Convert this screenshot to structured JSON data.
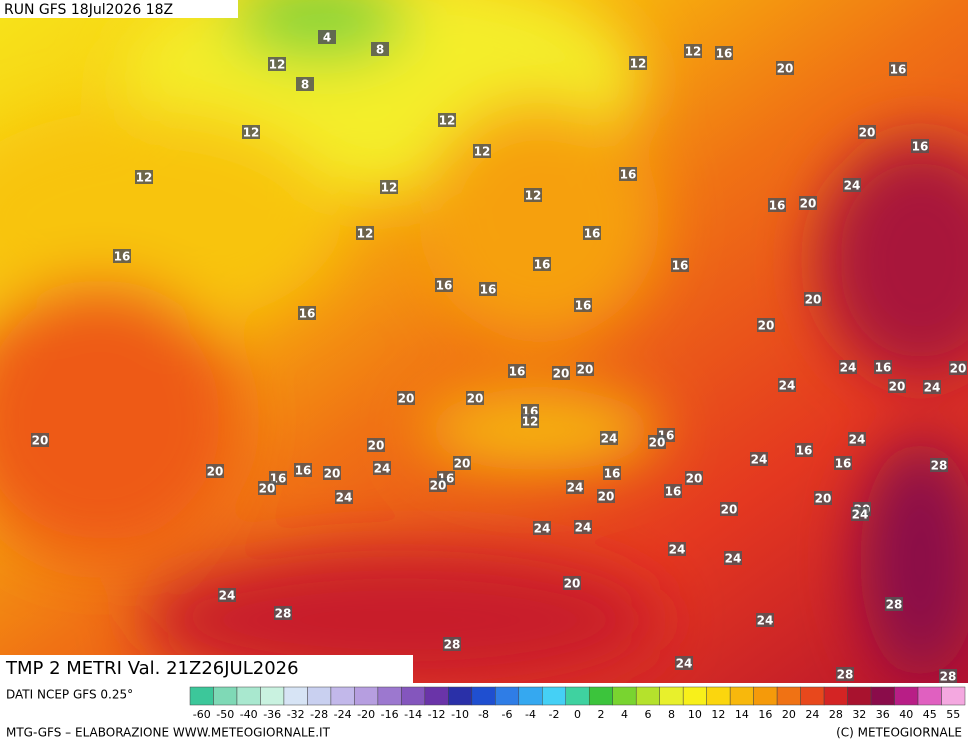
{
  "header": {
    "run": "RUN GFS 18Jul2026 18Z"
  },
  "map": {
    "field_title": "TMP 2 METRI Val. 21Z26JUL2026",
    "contour_labels": [
      4,
      8,
      12,
      8,
      12,
      12,
      16,
      20,
      16,
      12,
      12,
      20,
      16,
      12,
      12,
      16,
      24,
      12,
      12,
      16,
      20,
      12,
      16,
      16,
      16,
      16,
      16,
      16,
      16,
      16,
      20,
      20,
      16,
      20,
      20,
      24,
      16,
      20,
      24,
      20,
      24,
      20,
      20,
      16,
      12,
      20,
      20,
      24,
      16,
      20,
      24,
      16,
      24,
      16,
      28,
      20,
      20,
      16,
      16,
      20,
      24,
      16,
      20,
      16,
      20,
      20,
      24,
      16,
      20,
      24,
      20,
      20,
      20,
      24,
      24,
      24,
      24,
      24,
      20,
      24,
      28,
      28,
      24,
      28,
      24,
      28,
      28
    ]
  },
  "footer": {
    "source": "DATI NCEP GFS 0.25°",
    "credit": "MTG-GFS – ELABORAZIONE WWW.METEOGIORNALE.IT",
    "copyright": "(C) METEOGIORNALE"
  },
  "colorbar": {
    "ticks": [
      -60,
      -50,
      -40,
      -36,
      -32,
      -28,
      -24,
      -20,
      -16,
      -14,
      -12,
      -10,
      -8,
      -6,
      -4,
      -2,
      0,
      2,
      4,
      6,
      8,
      10,
      12,
      14,
      16,
      20,
      24,
      28,
      32,
      36,
      40,
      45,
      55
    ],
    "colors": [
      "#3cc79a",
      "#7fd9b6",
      "#a9e8cf",
      "#c9f2e0",
      "#d7e4f5",
      "#c9d0f0",
      "#c2b8ea",
      "#b69ee0",
      "#9c78cf",
      "#8456bd",
      "#6a34a8",
      "#2a30a8",
      "#1f4fd0",
      "#2f7de6",
      "#35a8f0",
      "#45d0f5",
      "#3fd2a0",
      "#3cc43c",
      "#79d430",
      "#b5e22c",
      "#e8f02c",
      "#f8f01a",
      "#fbd60e",
      "#f8b80c",
      "#f59a0a",
      "#f07214",
      "#e8481c",
      "#d42424",
      "#a8122e",
      "#8a0c4a",
      "#b81e86",
      "#e060c0",
      "#f4a8e0"
    ]
  }
}
